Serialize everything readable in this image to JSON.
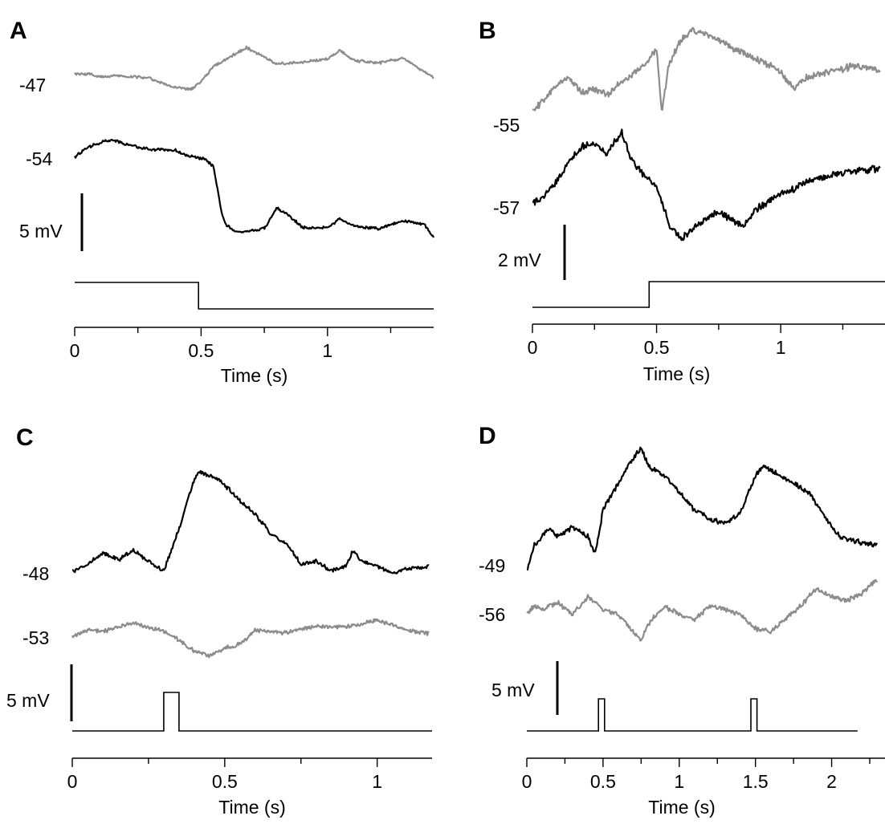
{
  "chart_data": [
    {
      "panel": "A",
      "type": "line",
      "xlabel": "Time (s)",
      "x_ticks": [
        0,
        0.5,
        1
      ],
      "x_tick_labels": [
        "0",
        "0.5",
        "1"
      ],
      "xlim": [
        0,
        1.42
      ],
      "scale_bar": "5 mV",
      "colors": {
        "gray": "#8c8c8c",
        "black": "#000000"
      },
      "series": [
        {
          "color": "gray",
          "label": "-47",
          "values": [
            [
              0,
              -47
            ],
            [
              0.05,
              -47
            ],
            [
              0.1,
              -47.3
            ],
            [
              0.2,
              -47.2
            ],
            [
              0.3,
              -47.5
            ],
            [
              0.38,
              -48.3
            ],
            [
              0.46,
              -48.6
            ],
            [
              0.5,
              -47.8
            ],
            [
              0.55,
              -46.2
            ],
            [
              0.6,
              -45.5
            ],
            [
              0.68,
              -44.3
            ],
            [
              0.8,
              -46
            ],
            [
              0.9,
              -45.8
            ],
            [
              1.0,
              -45.5
            ],
            [
              1.05,
              -44.6
            ],
            [
              1.1,
              -45.6
            ],
            [
              1.2,
              -45.9
            ],
            [
              1.3,
              -45.4
            ],
            [
              1.38,
              -46.8
            ],
            [
              1.42,
              -47.4
            ]
          ]
        },
        {
          "color": "black",
          "label": "-54",
          "values": [
            [
              0,
              -54
            ],
            [
              0.05,
              -53
            ],
            [
              0.1,
              -52.5
            ],
            [
              0.15,
              -52.2
            ],
            [
              0.2,
              -52.7
            ],
            [
              0.3,
              -53.2
            ],
            [
              0.4,
              -53.3
            ],
            [
              0.45,
              -53.9
            ],
            [
              0.52,
              -54.2
            ],
            [
              0.55,
              -55
            ],
            [
              0.58,
              -59.5
            ],
            [
              0.6,
              -61
            ],
            [
              0.65,
              -61.7
            ],
            [
              0.75,
              -61.3
            ],
            [
              0.8,
              -59.2
            ],
            [
              0.85,
              -60
            ],
            [
              0.9,
              -61.2
            ],
            [
              1.0,
              -61.2
            ],
            [
              1.05,
              -60.3
            ],
            [
              1.1,
              -61
            ],
            [
              1.2,
              -61.3
            ],
            [
              1.3,
              -60.5
            ],
            [
              1.38,
              -60.8
            ],
            [
              1.42,
              -62.2
            ]
          ]
        }
      ],
      "stimulus": {
        "type": "step_down",
        "change_at": 0.49
      }
    },
    {
      "panel": "B",
      "type": "line",
      "xlabel": "Time (s)",
      "x_ticks": [
        0,
        0.5,
        1
      ],
      "x_tick_labels": [
        "0",
        "0.5",
        "1"
      ],
      "xlim": [
        0,
        1.42
      ],
      "scale_bar": "2 mV",
      "colors": {
        "gray": "#8c8c8c",
        "black": "#000000"
      },
      "series": [
        {
          "color": "gray",
          "label": "-55",
          "values": [
            [
              0,
              -55
            ],
            [
              0.05,
              -54.4
            ],
            [
              0.1,
              -53.9
            ],
            [
              0.15,
              -53.6
            ],
            [
              0.2,
              -54.2
            ],
            [
              0.25,
              -54
            ],
            [
              0.3,
              -54.3
            ],
            [
              0.35,
              -53.8
            ],
            [
              0.4,
              -53.5
            ],
            [
              0.45,
              -53
            ],
            [
              0.5,
              -52.4
            ],
            [
              0.52,
              -55
            ],
            [
              0.55,
              -53
            ],
            [
              0.6,
              -52
            ],
            [
              0.65,
              -51.6
            ],
            [
              0.7,
              -51.8
            ],
            [
              0.8,
              -52.3
            ],
            [
              0.9,
              -52.8
            ],
            [
              1.0,
              -53.3
            ],
            [
              1.05,
              -54
            ],
            [
              1.1,
              -53.6
            ],
            [
              1.2,
              -53.3
            ],
            [
              1.3,
              -53.1
            ],
            [
              1.4,
              -53.3
            ]
          ]
        },
        {
          "color": "black",
          "label": "-57",
          "values": [
            [
              0,
              -57
            ],
            [
              0.05,
              -56.6
            ],
            [
              0.1,
              -56
            ],
            [
              0.15,
              -55.2
            ],
            [
              0.2,
              -54.6
            ],
            [
              0.25,
              -54.5
            ],
            [
              0.3,
              -54.9
            ],
            [
              0.36,
              -54
            ],
            [
              0.4,
              -55.2
            ],
            [
              0.45,
              -55.8
            ],
            [
              0.5,
              -56.2
            ],
            [
              0.55,
              -57.8
            ],
            [
              0.6,
              -58.4
            ],
            [
              0.65,
              -58
            ],
            [
              0.7,
              -57.6
            ],
            [
              0.75,
              -57.3
            ],
            [
              0.8,
              -57.6
            ],
            [
              0.85,
              -57.9
            ],
            [
              0.9,
              -57.2
            ],
            [
              1.0,
              -56.6
            ],
            [
              1.1,
              -56.1
            ],
            [
              1.2,
              -55.8
            ],
            [
              1.3,
              -55.6
            ],
            [
              1.4,
              -55.5
            ]
          ]
        }
      ],
      "stimulus": {
        "type": "step_up",
        "change_at": 0.47
      }
    },
    {
      "panel": "C",
      "type": "line",
      "xlabel": "Time (s)",
      "x_ticks": [
        0,
        0.5,
        1
      ],
      "x_tick_labels": [
        "0",
        "0.5",
        "1"
      ],
      "xlim": [
        0,
        1.18
      ],
      "scale_bar": "5 mV",
      "colors": {
        "gray": "#8c8c8c",
        "black": "#000000"
      },
      "series": [
        {
          "color": "black",
          "label": "-48",
          "values": [
            [
              0,
              -48
            ],
            [
              0.05,
              -47.5
            ],
            [
              0.1,
              -46.7
            ],
            [
              0.15,
              -47.2
            ],
            [
              0.2,
              -46.5
            ],
            [
              0.25,
              -47.3
            ],
            [
              0.3,
              -48
            ],
            [
              0.35,
              -45
            ],
            [
              0.4,
              -41.5
            ],
            [
              0.42,
              -41
            ],
            [
              0.48,
              -41.5
            ],
            [
              0.55,
              -43
            ],
            [
              0.6,
              -44
            ],
            [
              0.65,
              -45.3
            ],
            [
              0.7,
              -46
            ],
            [
              0.75,
              -47.5
            ],
            [
              0.8,
              -47.3
            ],
            [
              0.85,
              -48
            ],
            [
              0.9,
              -47.6
            ],
            [
              0.92,
              -46.5
            ],
            [
              0.95,
              -47.3
            ],
            [
              1.0,
              -47.6
            ],
            [
              1.05,
              -48.2
            ],
            [
              1.1,
              -47.8
            ],
            [
              1.15,
              -47.8
            ],
            [
              1.17,
              -47.6
            ]
          ]
        },
        {
          "color": "gray",
          "label": "-53",
          "values": [
            [
              0,
              -53
            ],
            [
              0.05,
              -52.5
            ],
            [
              0.1,
              -52.6
            ],
            [
              0.2,
              -52
            ],
            [
              0.3,
              -52.6
            ],
            [
              0.35,
              -53.2
            ],
            [
              0.4,
              -54
            ],
            [
              0.45,
              -54.3
            ],
            [
              0.5,
              -53.8
            ],
            [
              0.55,
              -53.5
            ],
            [
              0.6,
              -52.5
            ],
            [
              0.7,
              -52.7
            ],
            [
              0.8,
              -52.2
            ],
            [
              0.9,
              -52.3
            ],
            [
              1.0,
              -51.8
            ],
            [
              1.1,
              -52.5
            ],
            [
              1.17,
              -52.8
            ]
          ]
        }
      ],
      "stimulus": {
        "type": "pulse",
        "pulses": [
          [
            0.3,
            0.35
          ]
        ]
      }
    },
    {
      "panel": "D",
      "type": "line",
      "xlabel": "Time (s)",
      "x_ticks": [
        0,
        0.5,
        1,
        1.5,
        2
      ],
      "x_tick_labels": [
        "0",
        "0.5",
        "1",
        "1.5",
        "2"
      ],
      "xlim": [
        0,
        2.35
      ],
      "scale_bar": "5 mV",
      "colors": {
        "gray": "#8c8c8c",
        "black": "#000000"
      },
      "series": [
        {
          "color": "black",
          "label": "-49",
          "values": [
            [
              0,
              -49
            ],
            [
              0.05,
              -47.5
            ],
            [
              0.15,
              -46.5
            ],
            [
              0.2,
              -47
            ],
            [
              0.3,
              -46.5
            ],
            [
              0.4,
              -47
            ],
            [
              0.45,
              -48
            ],
            [
              0.5,
              -45.5
            ],
            [
              0.6,
              -44
            ],
            [
              0.7,
              -42.5
            ],
            [
              0.75,
              -42
            ],
            [
              0.8,
              -43
            ],
            [
              0.9,
              -43.5
            ],
            [
              1.0,
              -44.5
            ],
            [
              1.1,
              -45.5
            ],
            [
              1.2,
              -46
            ],
            [
              1.3,
              -46.3
            ],
            [
              1.4,
              -45.7
            ],
            [
              1.5,
              -43.5
            ],
            [
              1.55,
              -43
            ],
            [
              1.65,
              -43.5
            ],
            [
              1.75,
              -44
            ],
            [
              1.85,
              -44.5
            ],
            [
              1.95,
              -45.8
            ],
            [
              2.05,
              -47
            ],
            [
              2.15,
              -47.3
            ],
            [
              2.3,
              -47.5
            ]
          ]
        },
        {
          "color": "gray",
          "label": "-56",
          "values": [
            [
              0,
              -56
            ],
            [
              0.05,
              -55.5
            ],
            [
              0.1,
              -55.7
            ],
            [
              0.2,
              -55.3
            ],
            [
              0.3,
              -56
            ],
            [
              0.4,
              -55
            ],
            [
              0.5,
              -55.7
            ],
            [
              0.6,
              -56
            ],
            [
              0.7,
              -57
            ],
            [
              0.75,
              -57.5
            ],
            [
              0.8,
              -56.5
            ],
            [
              0.9,
              -55.5
            ],
            [
              1.0,
              -56
            ],
            [
              1.1,
              -56.3
            ],
            [
              1.2,
              -55.5
            ],
            [
              1.3,
              -55.7
            ],
            [
              1.4,
              -56
            ],
            [
              1.5,
              -56.8
            ],
            [
              1.6,
              -57
            ],
            [
              1.7,
              -56.2
            ],
            [
              1.8,
              -55.5
            ],
            [
              1.9,
              -54.5
            ],
            [
              2.0,
              -55
            ],
            [
              2.1,
              -55.2
            ],
            [
              2.2,
              -54.8
            ],
            [
              2.3,
              -54
            ]
          ]
        }
      ],
      "stimulus": {
        "type": "pulse",
        "pulses": [
          [
            0.47,
            0.51
          ],
          [
            1.47,
            1.51
          ]
        ],
        "end": 2.17
      }
    }
  ]
}
